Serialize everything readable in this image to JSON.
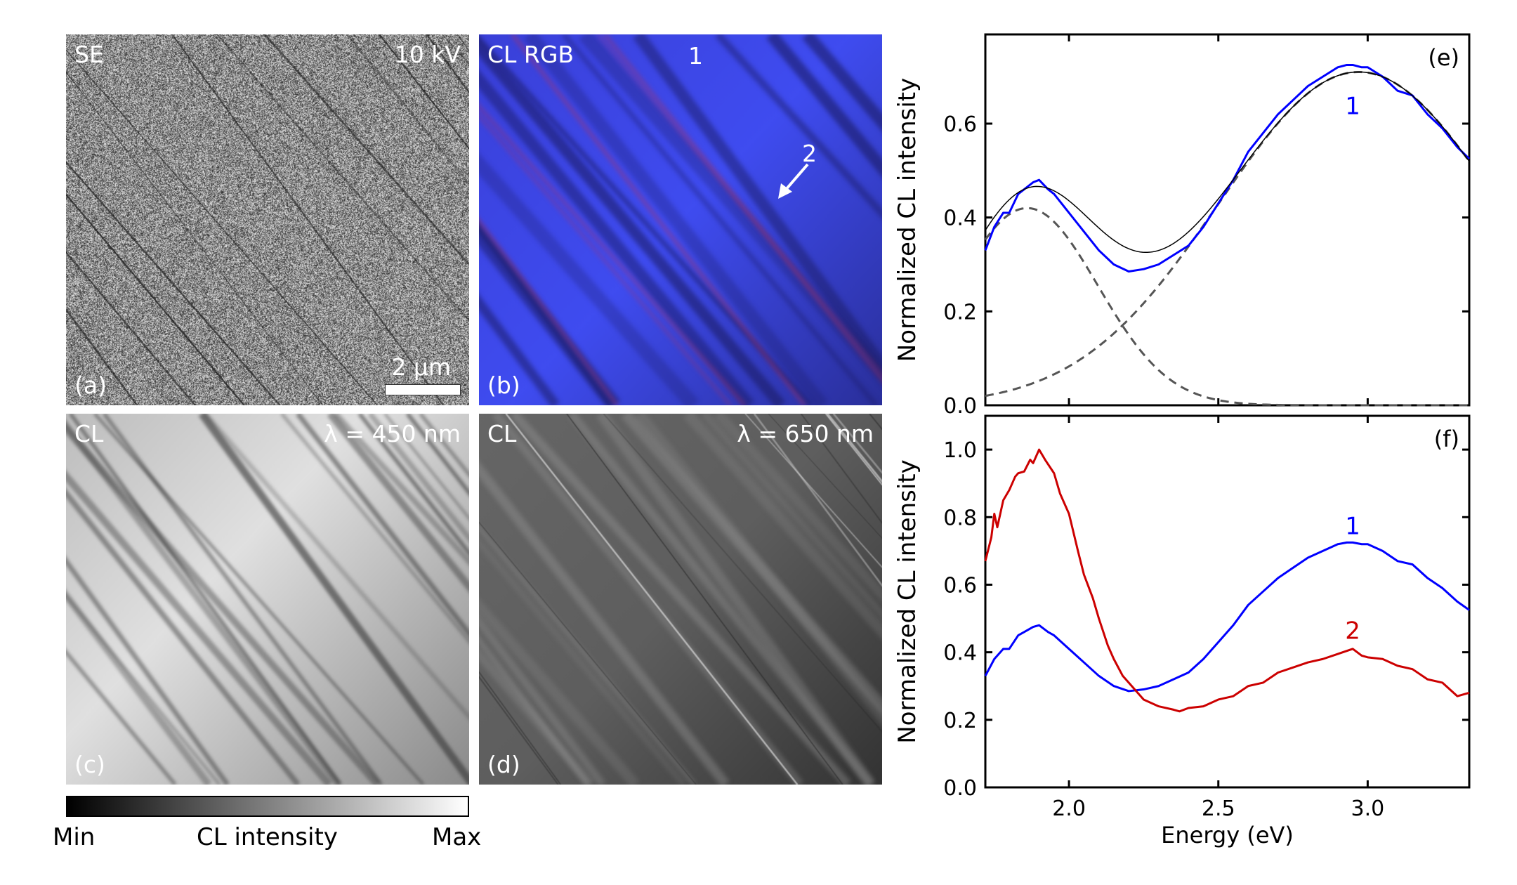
{
  "panels": {
    "a": {
      "label": "(a)",
      "title": "SE",
      "voltage": "10 kV",
      "scalebar": "2 µm"
    },
    "b": {
      "label": "(b)",
      "title": "CL RGB",
      "marker1": "1",
      "marker2": "2"
    },
    "c": {
      "label": "(c)",
      "title": "CL",
      "wavelength": "λ = 450 nm"
    },
    "d": {
      "label": "(d)",
      "title": "CL",
      "wavelength": "λ = 650 nm"
    }
  },
  "colorbar": {
    "min_label": "Min",
    "title": "CL intensity",
    "max_label": "Max",
    "colors": [
      "#000000",
      "#ffffff"
    ]
  },
  "chart_data": [
    {
      "id": "e",
      "type": "line",
      "panel_label": "(e)",
      "ylabel": "Normalized CL intensity",
      "xlabel": "",
      "xlim": [
        1.72,
        3.34
      ],
      "ylim": [
        0,
        0.79
      ],
      "xticks": [
        2.0,
        2.5,
        3.0
      ],
      "yticks": [
        "0.0",
        "0.2",
        "0.4",
        "0.6"
      ],
      "grid": false,
      "series": [
        {
          "label": "1",
          "color": "#0000ff",
          "style": "solid",
          "x": [
            1.72,
            1.75,
            1.78,
            1.8,
            1.83,
            1.85,
            1.88,
            1.9,
            1.93,
            1.95,
            2.0,
            2.05,
            2.1,
            2.15,
            2.2,
            2.25,
            2.3,
            2.35,
            2.4,
            2.45,
            2.5,
            2.55,
            2.6,
            2.65,
            2.7,
            2.75,
            2.8,
            2.85,
            2.9,
            2.93,
            2.95,
            2.98,
            3.0,
            3.05,
            3.1,
            3.15,
            3.2,
            3.25,
            3.3,
            3.34
          ],
          "y": [
            0.33,
            0.38,
            0.41,
            0.41,
            0.45,
            0.46,
            0.475,
            0.48,
            0.46,
            0.45,
            0.41,
            0.37,
            0.33,
            0.3,
            0.285,
            0.29,
            0.3,
            0.32,
            0.34,
            0.38,
            0.43,
            0.48,
            0.54,
            0.58,
            0.62,
            0.65,
            0.68,
            0.7,
            0.72,
            0.725,
            0.725,
            0.72,
            0.72,
            0.7,
            0.67,
            0.66,
            0.62,
            0.59,
            0.55,
            0.525
          ]
        }
      ],
      "fit": {
        "color": "#000000",
        "style": "solid",
        "components_color": "#555555",
        "components_style": "dashed",
        "components": [
          {
            "amplitude": 0.42,
            "center": 1.86,
            "sigma": 0.237
          },
          {
            "amplitude": 0.71,
            "center": 2.97,
            "sigma": 0.468
          }
        ]
      }
    },
    {
      "id": "f",
      "type": "line",
      "panel_label": "(f)",
      "ylabel": "Normalized CL intensity",
      "xlabel": "Energy (eV)",
      "xlim": [
        1.72,
        3.34
      ],
      "ylim": [
        0,
        1.1
      ],
      "xticks": [
        "2.0",
        "2.5",
        "3.0"
      ],
      "yticks": [
        "0.0",
        "0.2",
        "0.4",
        "0.6",
        "0.8",
        "1.0"
      ],
      "grid": false,
      "series": [
        {
          "label": "1",
          "color": "#0000ff",
          "x": [
            1.72,
            1.75,
            1.78,
            1.8,
            1.83,
            1.85,
            1.88,
            1.9,
            1.93,
            1.95,
            2.0,
            2.05,
            2.1,
            2.15,
            2.2,
            2.25,
            2.3,
            2.35,
            2.4,
            2.45,
            2.5,
            2.55,
            2.6,
            2.65,
            2.7,
            2.75,
            2.8,
            2.85,
            2.9,
            2.93,
            2.95,
            2.98,
            3.0,
            3.05,
            3.1,
            3.15,
            3.2,
            3.25,
            3.3,
            3.34
          ],
          "y": [
            0.33,
            0.38,
            0.41,
            0.41,
            0.45,
            0.46,
            0.475,
            0.48,
            0.46,
            0.45,
            0.41,
            0.37,
            0.33,
            0.3,
            0.285,
            0.29,
            0.3,
            0.32,
            0.34,
            0.38,
            0.43,
            0.48,
            0.54,
            0.58,
            0.62,
            0.65,
            0.68,
            0.7,
            0.72,
            0.725,
            0.725,
            0.72,
            0.72,
            0.7,
            0.67,
            0.66,
            0.62,
            0.59,
            0.55,
            0.525
          ]
        },
        {
          "label": "2",
          "color": "#cc0000",
          "x": [
            1.72,
            1.74,
            1.75,
            1.76,
            1.78,
            1.8,
            1.82,
            1.83,
            1.85,
            1.87,
            1.88,
            1.9,
            1.92,
            1.95,
            1.97,
            2.0,
            2.03,
            2.05,
            2.08,
            2.1,
            2.13,
            2.15,
            2.18,
            2.2,
            2.23,
            2.25,
            2.3,
            2.35,
            2.37,
            2.4,
            2.45,
            2.5,
            2.55,
            2.6,
            2.65,
            2.7,
            2.75,
            2.8,
            2.85,
            2.9,
            2.95,
            2.98,
            3.0,
            3.05,
            3.1,
            3.15,
            3.2,
            3.25,
            3.3,
            3.34
          ],
          "y": [
            0.67,
            0.74,
            0.81,
            0.77,
            0.85,
            0.88,
            0.92,
            0.93,
            0.935,
            0.97,
            0.96,
            1.0,
            0.97,
            0.93,
            0.87,
            0.81,
            0.7,
            0.63,
            0.56,
            0.5,
            0.42,
            0.38,
            0.33,
            0.31,
            0.28,
            0.26,
            0.24,
            0.23,
            0.225,
            0.235,
            0.24,
            0.26,
            0.27,
            0.3,
            0.31,
            0.34,
            0.355,
            0.37,
            0.38,
            0.395,
            0.41,
            0.39,
            0.385,
            0.38,
            0.36,
            0.35,
            0.32,
            0.31,
            0.27,
            0.28
          ]
        }
      ]
    }
  ]
}
